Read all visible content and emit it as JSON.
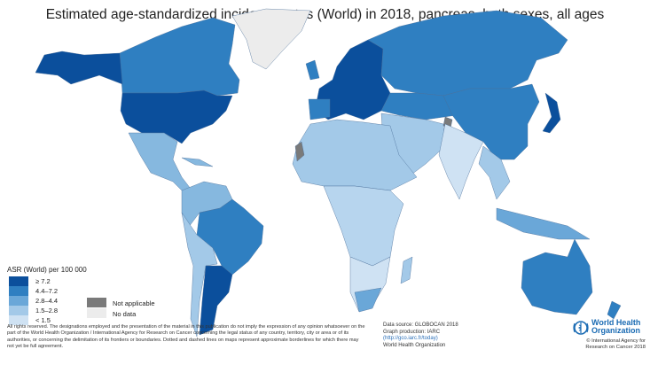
{
  "title": "Estimated age-standardized incidence rates (World) in 2018, pancreas, both sexes, all ages",
  "legend": {
    "title": "ASR (World) per 100 000",
    "bins": [
      {
        "label": "≥ 7.2",
        "color": "#0b4f9c"
      },
      {
        "label": "4.4–7.2",
        "color": "#2f7fc1"
      },
      {
        "label": "2.8–4.4",
        "color": "#6aa7d8"
      },
      {
        "label": "1.5–2.8",
        "color": "#a3c9e8"
      },
      {
        "label": "< 1.5",
        "color": "#cfe2f3"
      }
    ],
    "not_applicable": {
      "label": "Not applicable",
      "color": "#7a7a7a"
    },
    "no_data": {
      "label": "No data",
      "color": "#ececec"
    }
  },
  "disclaimer": "All rights reserved. The designations employed and the presentation of the material in this publication do not imply the expression of any opinion whatsoever on the part of the World Health Organization / International Agency for Research on Cancer concerning the legal status of any country, territory, city or area or of its authorities, or concerning the delimitation of its frontiers or boundaries. Dotted and dashed lines on maps represent approximate borderlines for which there may not yet be full agreement.",
  "source": {
    "line1": "Data source: GLOBOCAN 2018",
    "line2": "Graph production: IARC",
    "link": "(http://gco.iarc.fr/today)",
    "line4": "World Health Organization"
  },
  "who": {
    "name_line1": "World Health",
    "name_line2": "Organization",
    "copyright": "© International Agency for Research on Cancer 2018"
  }
}
